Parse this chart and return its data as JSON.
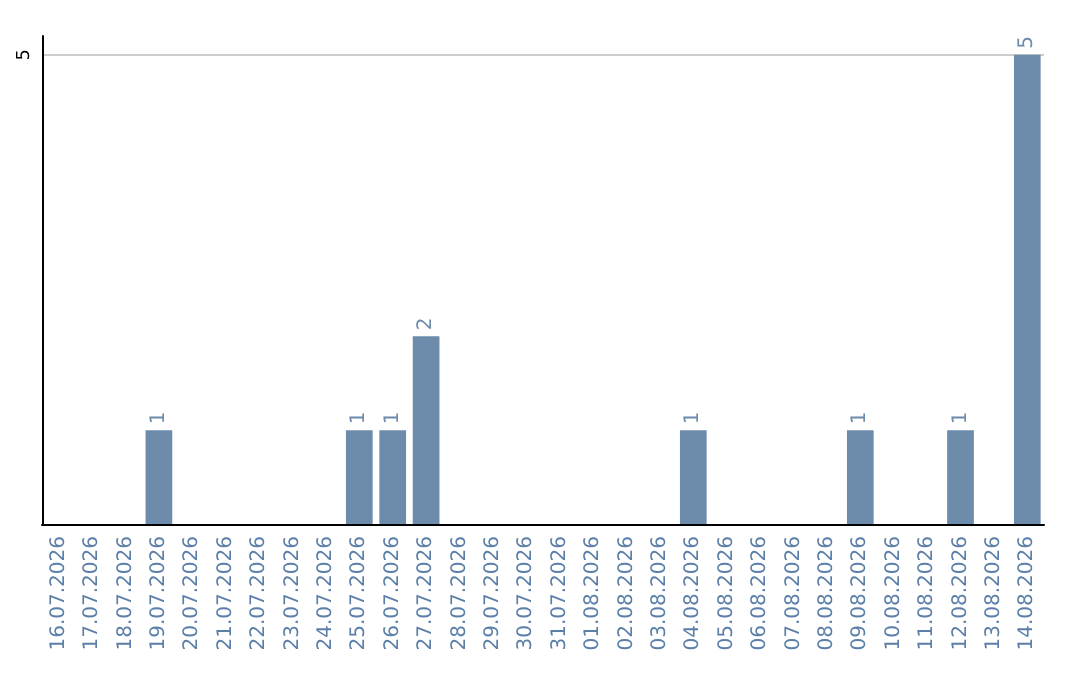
{
  "chart_data": {
    "type": "bar",
    "categories": [
      "16.07.2026",
      "17.07.2026",
      "18.07.2026",
      "19.07.2026",
      "20.07.2026",
      "21.07.2026",
      "22.07.2026",
      "23.07.2026",
      "24.07.2026",
      "25.07.2026",
      "26.07.2026",
      "27.07.2026",
      "28.07.2026",
      "29.07.2026",
      "30.07.2026",
      "31.07.2026",
      "01.08.2026",
      "02.08.2026",
      "03.08.2026",
      "04.08.2026",
      "05.08.2026",
      "06.08.2026",
      "07.08.2026",
      "08.08.2026",
      "09.08.2026",
      "10.08.2026",
      "11.08.2026",
      "12.08.2026",
      "13.08.2026",
      "14.08.2026"
    ],
    "values": [
      0,
      0,
      0,
      1,
      0,
      0,
      0,
      0,
      0,
      1,
      1,
      2,
      0,
      0,
      0,
      0,
      0,
      0,
      0,
      1,
      0,
      0,
      0,
      0,
      1,
      0,
      0,
      1,
      0,
      5
    ],
    "value_labels": [
      null,
      null,
      null,
      "1",
      null,
      null,
      null,
      null,
      null,
      "1",
      "1",
      "2",
      null,
      null,
      null,
      null,
      null,
      null,
      null,
      "1",
      null,
      null,
      null,
      null,
      "1",
      null,
      null,
      "1",
      null,
      "5"
    ],
    "color": "#6d8cab",
    "ylim": [
      0,
      5.2
    ],
    "yticks": [
      5
    ],
    "grid": "y"
  }
}
